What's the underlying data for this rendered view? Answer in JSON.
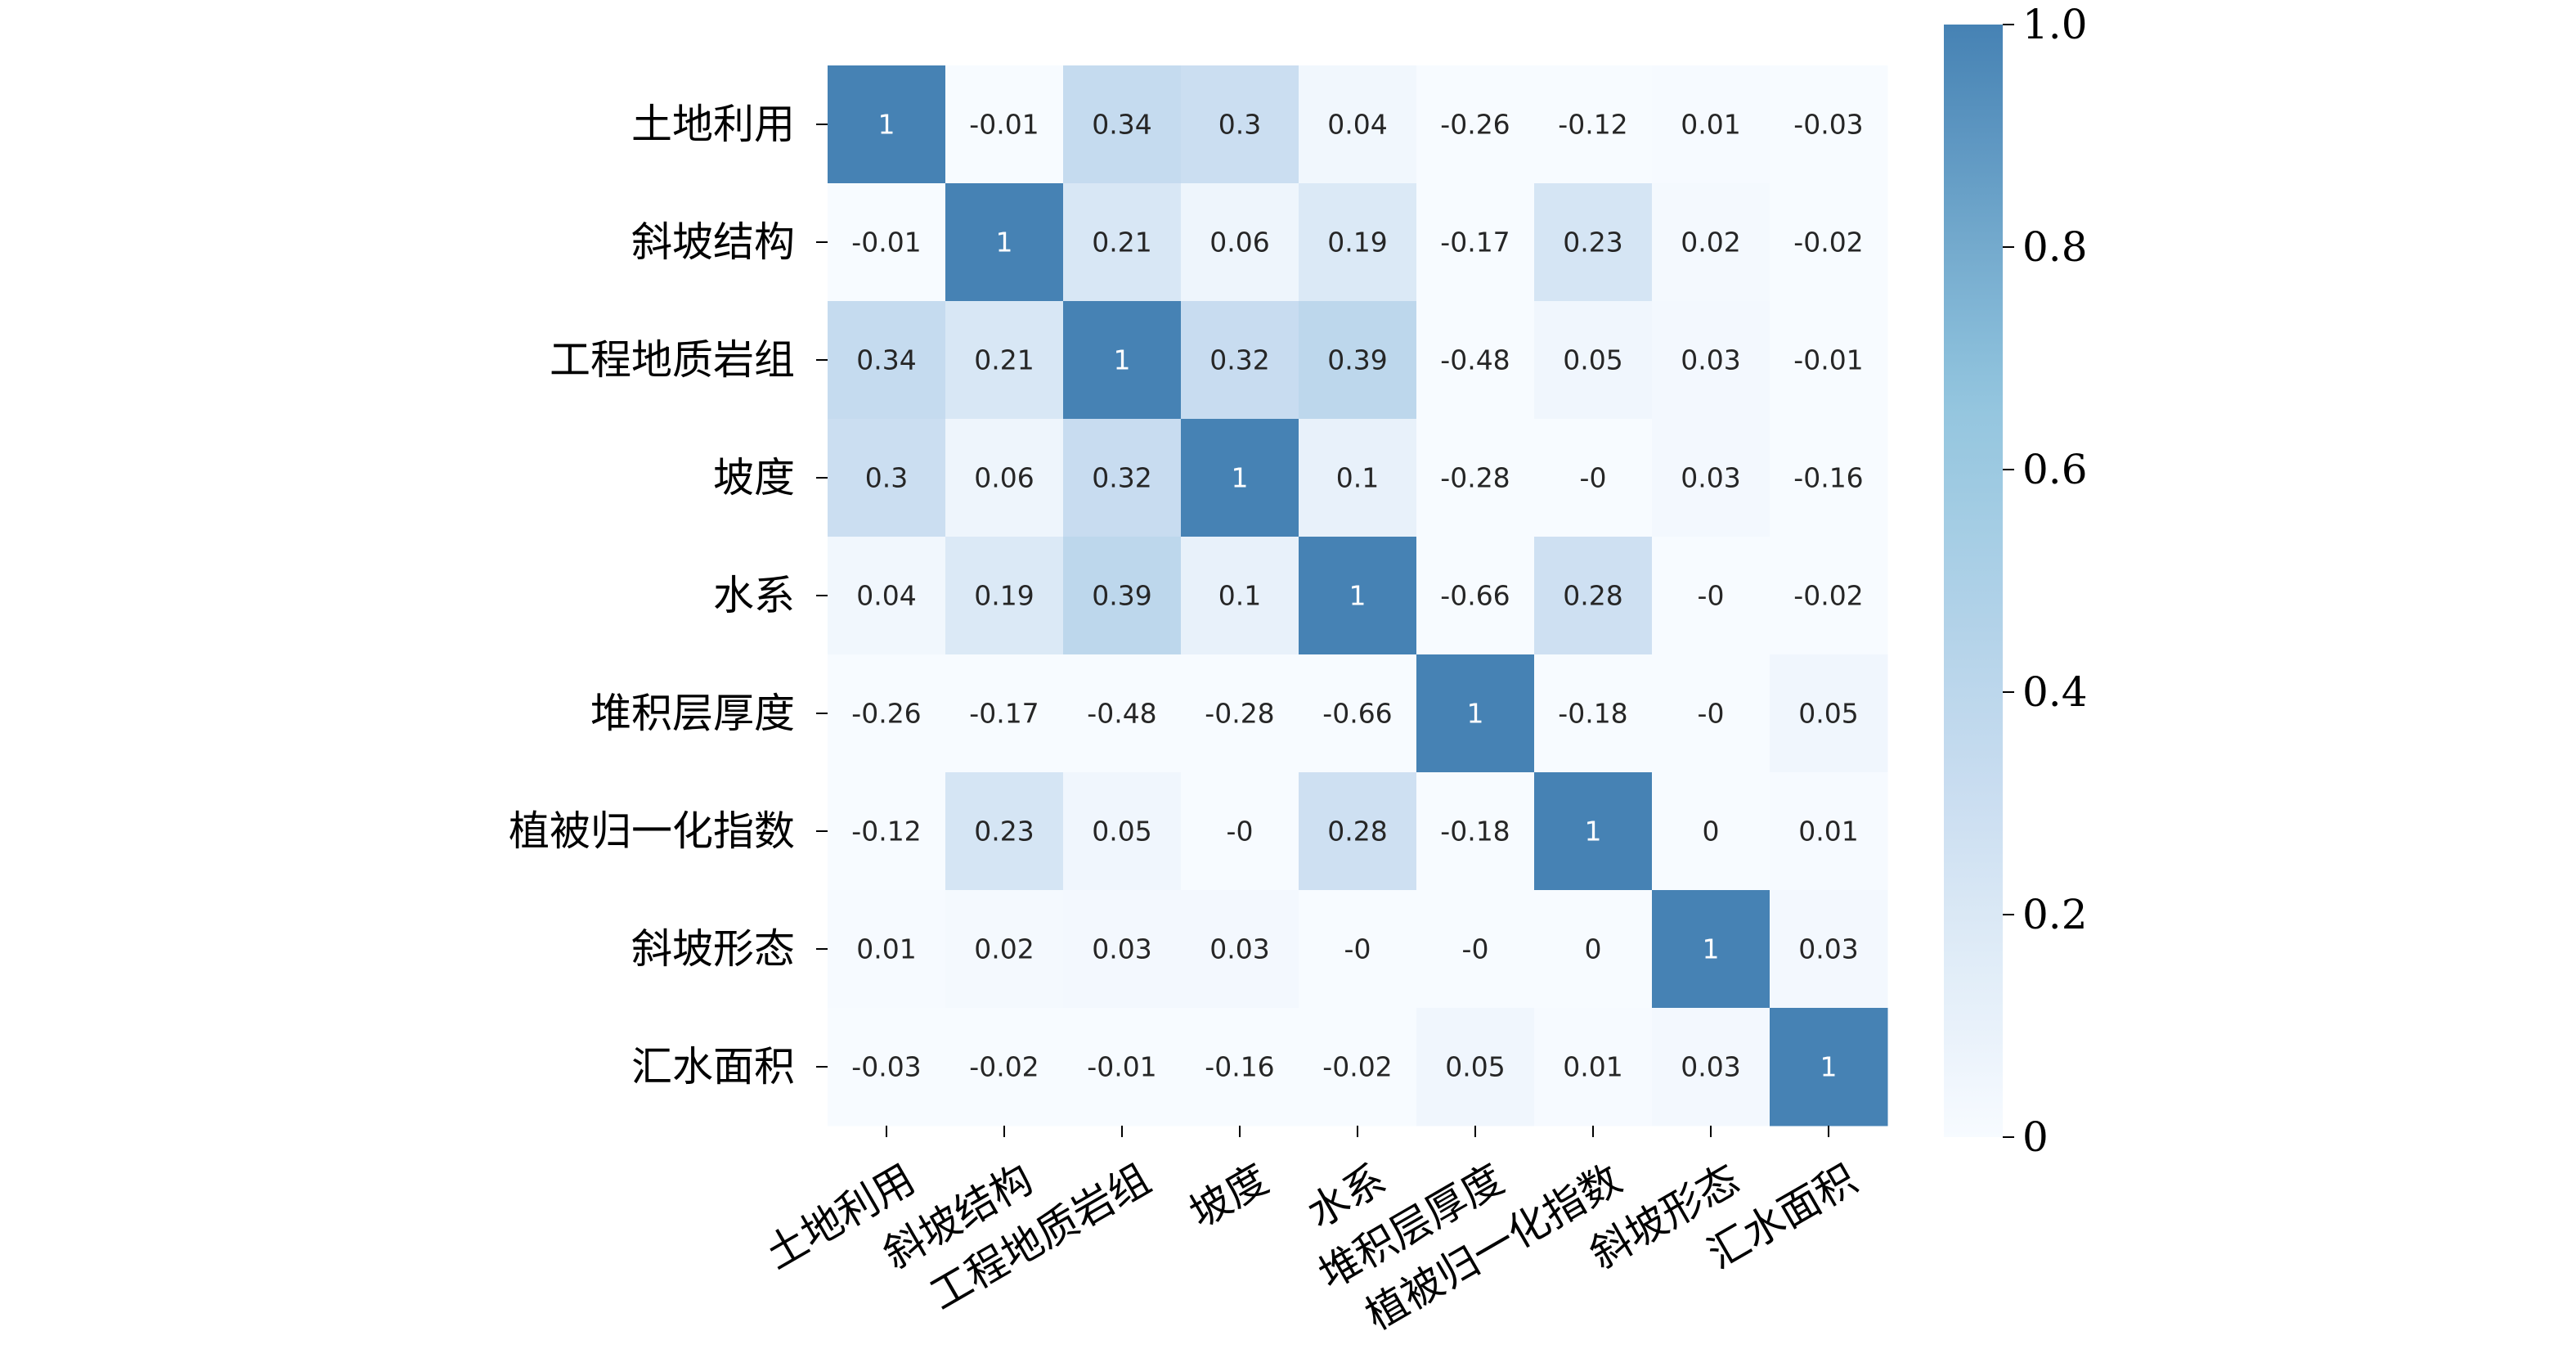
{
  "chart_data": {
    "type": "heatmap",
    "title": "",
    "xlabel": "",
    "ylabel": "",
    "row_labels": [
      "土地利用",
      "斜坡结构",
      "工程地质岩组",
      "坡度",
      "水系",
      "堆积层厚度",
      "植被归一化指数",
      "斜坡形态",
      "汇水面积"
    ],
    "col_labels": [
      "土地利用",
      "斜坡结构",
      "工程地质岩组",
      "坡度",
      "水系",
      "堆积层厚度",
      "植被归一化指数",
      "斜坡形态",
      "汇水面积"
    ],
    "values": [
      [
        1,
        -0.01,
        0.34,
        0.3,
        0.04,
        -0.26,
        -0.12,
        0.01,
        -0.03
      ],
      [
        -0.01,
        1,
        0.21,
        0.06,
        0.19,
        -0.17,
        0.23,
        0.02,
        -0.02
      ],
      [
        0.34,
        0.21,
        1,
        0.32,
        0.39,
        -0.48,
        0.05,
        0.03,
        -0.01
      ],
      [
        0.3,
        0.06,
        0.32,
        1,
        0.1,
        -0.28,
        -0.0,
        0.03,
        -0.16
      ],
      [
        0.04,
        0.19,
        0.39,
        0.1,
        1,
        -0.66,
        0.28,
        -0.0,
        -0.02
      ],
      [
        -0.26,
        -0.17,
        -0.48,
        -0.28,
        -0.66,
        1,
        -0.18,
        -0.0,
        0.05
      ],
      [
        -0.12,
        0.23,
        0.05,
        -0.0,
        0.28,
        -0.18,
        1,
        0,
        0.01
      ],
      [
        0.01,
        0.02,
        0.03,
        0.03,
        -0.0,
        -0.0,
        0,
        1,
        0.03
      ],
      [
        -0.03,
        -0.02,
        -0.01,
        -0.16,
        -0.02,
        0.05,
        0.01,
        0.03,
        1
      ]
    ],
    "cell_labels": [
      [
        "1",
        "-0.01",
        "0.34",
        "0.3",
        "0.04",
        "-0.26",
        "-0.12",
        "0.01",
        "-0.03"
      ],
      [
        "-0.01",
        "1",
        "0.21",
        "0.06",
        "0.19",
        "-0.17",
        "0.23",
        "0.02",
        "-0.02"
      ],
      [
        "0.34",
        "0.21",
        "1",
        "0.32",
        "0.39",
        "-0.48",
        "0.05",
        "0.03",
        "-0.01"
      ],
      [
        "0.3",
        "0.06",
        "0.32",
        "1",
        "0.1",
        "-0.28",
        "-0",
        "0.03",
        "-0.16"
      ],
      [
        "0.04",
        "0.19",
        "0.39",
        "0.1",
        "1",
        "-0.66",
        "0.28",
        "-0",
        "-0.02"
      ],
      [
        "-0.26",
        "-0.17",
        "-0.48",
        "-0.28",
        "-0.66",
        "1",
        "-0.18",
        "-0",
        "0.05"
      ],
      [
        "-0.12",
        "0.23",
        "0.05",
        "-0",
        "0.28",
        "-0.18",
        "1",
        "0",
        "0.01"
      ],
      [
        "0.01",
        "0.02",
        "0.03",
        "0.03",
        "-0",
        "-0",
        "0",
        "1",
        "0.03"
      ],
      [
        "-0.03",
        "-0.02",
        "-0.01",
        "-0.16",
        "-0.02",
        "0.05",
        "0.01",
        "0.03",
        "1"
      ]
    ],
    "color_range": [
      0,
      1.0
    ],
    "colorbar": {
      "ticks": [
        0,
        0.2,
        0.4,
        0.6,
        0.8,
        1.0
      ],
      "tick_labels": [
        "0",
        "0.2",
        "0.4",
        "0.6",
        "0.8",
        "1.0"
      ],
      "placement": "right"
    },
    "colormap_stops": [
      "#f7fbff",
      "#c6dbef",
      "#92c5de",
      "#4682b4"
    ],
    "grid": false,
    "legend": "none"
  }
}
